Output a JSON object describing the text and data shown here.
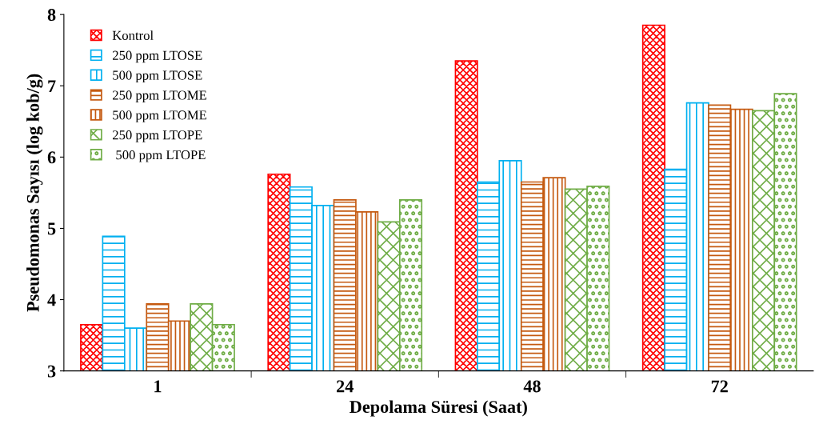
{
  "chart_data": {
    "type": "bar",
    "xlabel": "Depolama Süresi (Saat)",
    "ylabel": "Pseudomonas Sayısı (log kob/g)",
    "categories": [
      "1",
      "24",
      "48",
      "72"
    ],
    "ylim": [
      3,
      8
    ],
    "yticks": [
      3,
      4,
      5,
      6,
      7,
      8
    ],
    "legend": "top left",
    "grid": false,
    "series": [
      {
        "name": "Kontrol",
        "color": "#ff0000",
        "values": [
          3.65,
          5.76,
          7.35,
          7.85
        ]
      },
      {
        "name": "250 ppm LTOSE",
        "color": "#00b0f0",
        "values": [
          4.89,
          5.58,
          5.65,
          5.83
        ]
      },
      {
        "name": "500 ppm LTOSE",
        "color": "#00b0f0",
        "values": [
          3.6,
          5.32,
          5.95,
          6.76
        ]
      },
      {
        "name": "250 ppm LTOME",
        "color": "#c55a11",
        "values": [
          3.94,
          5.4,
          5.65,
          6.73
        ]
      },
      {
        "name": "500 ppm LTOME",
        "color": "#c55a11",
        "values": [
          3.7,
          5.23,
          5.71,
          6.67
        ]
      },
      {
        "name": "250 ppm LTOPE",
        "color": "#70ad47",
        "values": [
          3.94,
          5.09,
          5.55,
          6.65
        ]
      },
      {
        "name": " 500 ppm LTOPE",
        "color": "#70ad47",
        "values": [
          3.65,
          5.4,
          5.59,
          6.89
        ]
      }
    ]
  }
}
